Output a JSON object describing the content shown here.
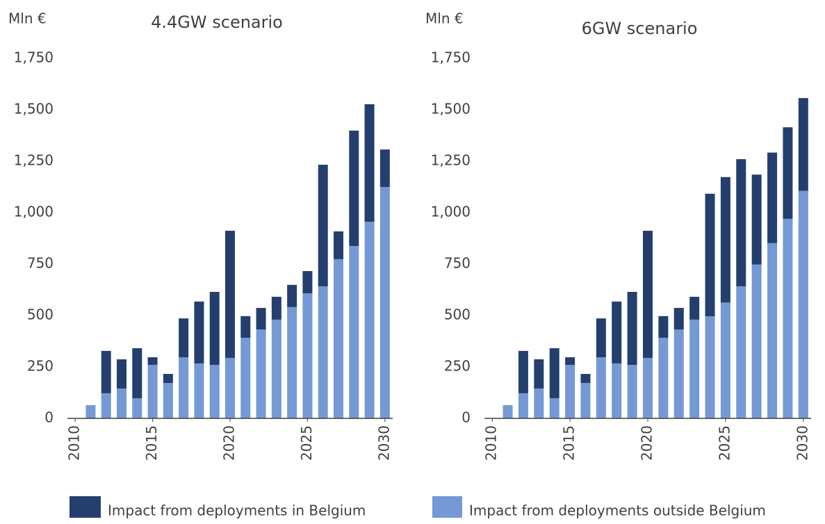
{
  "chart_data": [
    {
      "type": "bar",
      "stacked": true,
      "title": "4.4GW scenario",
      "ylabel": "Mln €",
      "x": [
        2011,
        2012,
        2013,
        2014,
        2015,
        2016,
        2017,
        2018,
        2019,
        2020,
        2021,
        2022,
        2023,
        2024,
        2025,
        2026,
        2027,
        2028,
        2029,
        2030
      ],
      "xlim": [
        2009.5,
        2030.5
      ],
      "xticks": [
        2010,
        2015,
        2020,
        2025,
        2030
      ],
      "ylim": [
        0,
        1750
      ],
      "yticks": [
        0,
        250,
        500,
        750,
        {
          "value": 1000,
          "label": "1,000"
        },
        {
          "value": 1250,
          "label": "1,250"
        },
        {
          "value": 1500,
          "label": "1,500"
        },
        {
          "value": 1750,
          "label": "1,750"
        }
      ],
      "series": [
        {
          "name": "Impact from deployments outside Belgium",
          "color": "#7499d4",
          "values": [
            64,
            122,
            145,
            98,
            260,
            172,
            297,
            267,
            260,
            294,
            392,
            432,
            480,
            541,
            608,
            642,
            774,
            838,
            956,
            1125
          ]
        },
        {
          "name": "Impact from deployments in Belgium",
          "color": "#243f6e",
          "values": [
            0,
            206,
            142,
            243,
            37,
            44,
            189,
            301,
            355,
            618,
            105,
            105,
            111,
            108,
            108,
            591,
            135,
            561,
            571,
            182
          ]
        }
      ]
    },
    {
      "type": "bar",
      "stacked": true,
      "title": "6GW scenario",
      "ylabel": "Mln €",
      "x": [
        2011,
        2012,
        2013,
        2014,
        2015,
        2016,
        2017,
        2018,
        2019,
        2020,
        2021,
        2022,
        2023,
        2024,
        2025,
        2026,
        2027,
        2028,
        2029,
        2030
      ],
      "xlim": [
        2009.5,
        2030.5
      ],
      "xticks": [
        2010,
        2015,
        2020,
        2025,
        2030
      ],
      "ylim": [
        0,
        1750
      ],
      "yticks": [
        0,
        250,
        500,
        750,
        {
          "value": 1000,
          "label": "1,000"
        },
        {
          "value": 1250,
          "label": "1,250"
        },
        {
          "value": 1500,
          "label": "1,500"
        },
        {
          "value": 1750,
          "label": "1,750"
        }
      ],
      "series": [
        {
          "color": "#7499d4",
          "values": [
            64,
            122,
            145,
            98,
            260,
            172,
            297,
            267,
            260,
            294,
            392,
            432,
            480,
            496,
            563,
            642,
            748,
            852,
            970,
            1106
          ]
        },
        {
          "color": "#243f6e",
          "values": [
            0,
            206,
            142,
            243,
            37,
            44,
            189,
            301,
            355,
            618,
            105,
            105,
            111,
            596,
            610,
            618,
            437,
            440,
            445,
            451
          ]
        }
      ]
    }
  ]
}
